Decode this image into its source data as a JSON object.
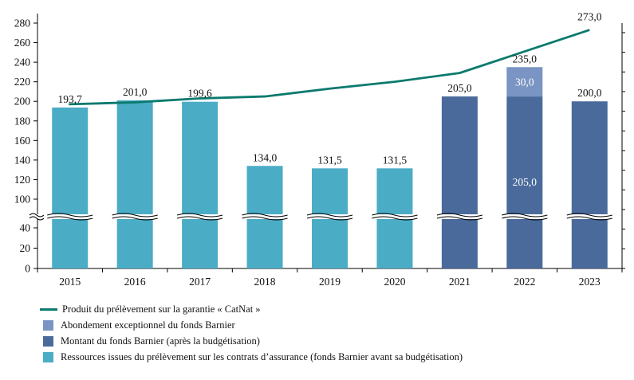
{
  "chart_data": {
    "type": "bar",
    "categories": [
      "2015",
      "2016",
      "2017",
      "2018",
      "2019",
      "2020",
      "2021",
      "2022",
      "2023"
    ],
    "series": [
      {
        "name": "Ressources issues du prélèvement sur les contrats d’assurance (fonds Barnier avant sa budgétisation)",
        "kind": "bar",
        "color": "#4BACC6",
        "values": [
          193.7,
          201.0,
          199.6,
          134.0,
          131.5,
          131.5,
          null,
          null,
          null
        ]
      },
      {
        "name": "Montant du fonds Barnier (après la budgétisation)",
        "kind": "bar",
        "color": "#4A6A9C",
        "values": [
          null,
          null,
          null,
          null,
          null,
          null,
          205.0,
          205.0,
          200.0
        ]
      },
      {
        "name": "Abondement exceptionnel du fonds Barnier",
        "kind": "bar-stacked",
        "color": "#7A95C3",
        "values": [
          null,
          null,
          null,
          null,
          null,
          null,
          null,
          30.0,
          null
        ]
      },
      {
        "name": "Produit du prélèvement sur la garantie « CatNat »",
        "kind": "line",
        "color": "#0B7A6E",
        "values": [
          197,
          199,
          203,
          205,
          213,
          220,
          229,
          251,
          273
        ]
      }
    ],
    "bar_labels": [
      "193,7",
      "201,0",
      "199,6",
      "134,0",
      "131,5",
      "131,5",
      "205,0",
      "235,0",
      "200,0"
    ],
    "segment_labels": {
      "2022": {
        "base": "205,0",
        "top": "30,0"
      }
    },
    "line_labels": {
      "2023": "273,0"
    },
    "y_ticks": [
      "0",
      "20",
      "40",
      "100",
      "120",
      "140",
      "160",
      "180",
      "200",
      "220",
      "240",
      "260",
      "280"
    ],
    "y_axis_break": [
      50,
      90
    ],
    "ylim": [
      0,
      280
    ],
    "title": "",
    "xlabel": "",
    "ylabel": "",
    "grid": false,
    "legend_position": "bottom-left"
  },
  "legend": [
    {
      "label": "Produit du prélèvement sur la garantie « CatNat »",
      "type": "line",
      "color": "#0B7A6E"
    },
    {
      "label": "Abondement exceptionnel du fonds Barnier",
      "type": "box",
      "color": "#7A95C3"
    },
    {
      "label": "Montant du fonds Barnier (après la budgétisation)",
      "type": "box",
      "color": "#4A6A9C"
    },
    {
      "label": "Ressources issues du prélèvement sur les contrats d’assurance (fonds Barnier avant sa budgétisation)",
      "type": "box",
      "color": "#4BACC6"
    }
  ]
}
